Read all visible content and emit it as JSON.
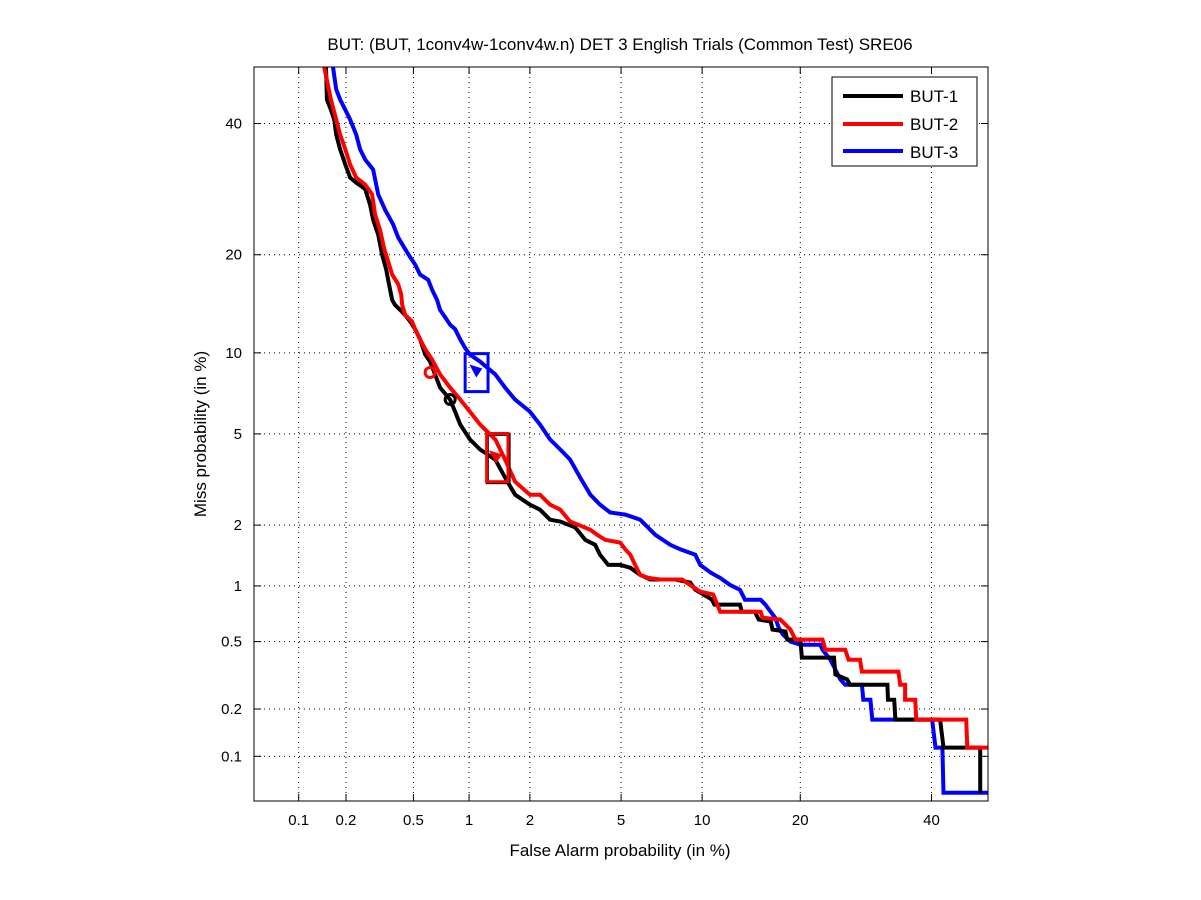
{
  "chart_data": {
    "type": "line",
    "title": "BUT: (BUT, 1conv4w-1conv4w.n) DET 3 English Trials (Common Test) SRE06",
    "xlabel": "False Alarm probability (in %)",
    "ylabel": "Miss probability (in %)",
    "xscale": "normal-deviate",
    "yscale": "normal-deviate",
    "xlim": [
      0.05,
      50
    ],
    "ylim": [
      0.05,
      50
    ],
    "grid": true,
    "legend_position": "top-right",
    "x_ticks": [
      0.1,
      0.2,
      0.5,
      1,
      2,
      5,
      10,
      20,
      40
    ],
    "x_tick_labels": [
      "0.1",
      "0.2",
      "0.5",
      "1",
      "2",
      "5",
      "10",
      "20",
      "40"
    ],
    "y_ticks": [
      0.1,
      0.2,
      0.5,
      1,
      2,
      5,
      10,
      20,
      40
    ],
    "y_tick_labels": [
      "0.1",
      "0.2",
      "0.5",
      "1",
      "2",
      "5",
      "10",
      "20",
      "40"
    ],
    "series": [
      {
        "name": "BUT-1",
        "color": "#000000",
        "points": [
          [
            0.15,
            50
          ],
          [
            0.152,
            44.2
          ],
          [
            0.161,
            42.4
          ],
          [
            0.169,
            40.7
          ],
          [
            0.174,
            38.1
          ],
          [
            0.184,
            35.6
          ],
          [
            0.198,
            33.1
          ],
          [
            0.212,
            31.0
          ],
          [
            0.231,
            30.2
          ],
          [
            0.244,
            29.8
          ],
          [
            0.262,
            29.2
          ],
          [
            0.28,
            26.9
          ],
          [
            0.292,
            24.7
          ],
          [
            0.313,
            22.6
          ],
          [
            0.33,
            20.0
          ],
          [
            0.349,
            18.2
          ],
          [
            0.358,
            17.0
          ],
          [
            0.378,
            14.8
          ],
          [
            0.393,
            14.3
          ],
          [
            0.421,
            13.8
          ],
          [
            0.449,
            13.3
          ],
          [
            0.479,
            12.7
          ],
          [
            0.511,
            12.0
          ],
          [
            0.545,
            11.1
          ],
          [
            0.582,
            9.87
          ],
          [
            0.619,
            9.33
          ],
          [
            0.702,
            7.53
          ],
          [
            0.795,
            6.8
          ],
          [
            0.845,
            6.12
          ],
          [
            0.899,
            5.45
          ],
          [
            1.01,
            4.75
          ],
          [
            1.14,
            4.32
          ],
          [
            1.36,
            3.92
          ],
          [
            1.52,
            3.28
          ],
          [
            1.7,
            2.76
          ],
          [
            2.0,
            2.49
          ],
          [
            2.23,
            2.36
          ],
          [
            2.48,
            2.12
          ],
          [
            2.76,
            2.08
          ],
          [
            3.21,
            1.95
          ],
          [
            3.55,
            1.7
          ],
          [
            3.91,
            1.61
          ],
          [
            4.1,
            1.44
          ],
          [
            4.43,
            1.28
          ],
          [
            4.96,
            1.28
          ],
          [
            5.44,
            1.24
          ],
          [
            5.95,
            1.14
          ],
          [
            6.5,
            1.08
          ],
          [
            8.05,
            1.08
          ],
          [
            9.09,
            1.04
          ],
          [
            9.47,
            0.956
          ],
          [
            9.85,
            0.924
          ],
          [
            10.8,
            0.847
          ],
          [
            11.0,
            0.797
          ],
          [
            13.3,
            0.797
          ],
          [
            13.5,
            0.73
          ],
          [
            14.8,
            0.73
          ],
          [
            15.2,
            0.662
          ],
          [
            16.5,
            0.646
          ],
          [
            16.7,
            0.583
          ],
          [
            18.2,
            0.569
          ],
          [
            18.4,
            0.513
          ],
          [
            20.0,
            0.513
          ],
          [
            20.2,
            0.405
          ],
          [
            24.5,
            0.405
          ],
          [
            24.7,
            0.323
          ],
          [
            26.4,
            0.302
          ],
          [
            26.8,
            0.281
          ],
          [
            32.6,
            0.281
          ],
          [
            32.7,
            0.228
          ],
          [
            33.7,
            0.228
          ],
          [
            33.9,
            0.172
          ],
          [
            41.5,
            0.172
          ],
          [
            42.1,
            0.114
          ],
          [
            48.6,
            0.114
          ],
          [
            48.6,
            0.057
          ]
        ],
        "min_dcf_point": [
          1.37,
          4.0
        ],
        "act_dcf_point": [
          0.795,
          6.8
        ],
        "confidence_box": {
          "fa": [
            1.24,
            1.59
          ],
          "miss": [
            3.12,
            4.98
          ]
        }
      },
      {
        "name": "BUT-2",
        "color": "#ff0000",
        "points": [
          [
            0.146,
            50
          ],
          [
            0.161,
            44.2
          ],
          [
            0.174,
            40.7
          ],
          [
            0.184,
            38.1
          ],
          [
            0.198,
            35.6
          ],
          [
            0.212,
            33.1
          ],
          [
            0.231,
            31.0
          ],
          [
            0.262,
            29.9
          ],
          [
            0.288,
            28.4
          ],
          [
            0.3,
            25.4
          ],
          [
            0.321,
            23.3
          ],
          [
            0.34,
            20.7
          ],
          [
            0.358,
            19.2
          ],
          [
            0.378,
            17.6
          ],
          [
            0.41,
            16.5
          ],
          [
            0.426,
            15.4
          ],
          [
            0.432,
            14.3
          ],
          [
            0.449,
            13.3
          ],
          [
            0.491,
            12.7
          ],
          [
            0.511,
            12.0
          ],
          [
            0.545,
            11.1
          ],
          [
            0.582,
            10.3
          ],
          [
            0.635,
            9.48
          ],
          [
            0.702,
            8.41
          ],
          [
            0.795,
            7.53
          ],
          [
            0.899,
            6.8
          ],
          [
            1.01,
            6.12
          ],
          [
            1.14,
            5.45
          ],
          [
            1.36,
            4.75
          ],
          [
            1.52,
            3.92
          ],
          [
            1.7,
            3.15
          ],
          [
            2.0,
            2.76
          ],
          [
            2.23,
            2.76
          ],
          [
            2.48,
            2.49
          ],
          [
            2.76,
            2.36
          ],
          [
            3.05,
            2.08
          ],
          [
            3.73,
            1.9
          ],
          [
            3.99,
            1.8
          ],
          [
            4.31,
            1.7
          ],
          [
            4.96,
            1.65
          ],
          [
            5.2,
            1.53
          ],
          [
            5.44,
            1.44
          ],
          [
            5.68,
            1.28
          ],
          [
            5.95,
            1.14
          ],
          [
            6.39,
            1.1
          ],
          [
            7.08,
            1.08
          ],
          [
            8.52,
            1.08
          ],
          [
            9.09,
            1.01
          ],
          [
            9.85,
            0.934
          ],
          [
            10.9,
            0.902
          ],
          [
            11.5,
            0.73
          ],
          [
            15.4,
            0.73
          ],
          [
            15.6,
            0.678
          ],
          [
            17.6,
            0.662
          ],
          [
            18.2,
            0.621
          ],
          [
            18.8,
            0.583
          ],
          [
            19.4,
            0.513
          ],
          [
            22.9,
            0.513
          ],
          [
            23.3,
            0.45
          ],
          [
            26.1,
            0.45
          ],
          [
            26.6,
            0.394
          ],
          [
            28.3,
            0.394
          ],
          [
            28.6,
            0.336
          ],
          [
            34.4,
            0.336
          ],
          [
            34.7,
            0.281
          ],
          [
            35.5,
            0.281
          ],
          [
            35.5,
            0.228
          ],
          [
            37.2,
            0.228
          ],
          [
            37.4,
            0.172
          ],
          [
            46.1,
            0.172
          ],
          [
            46.3,
            0.114
          ],
          [
            50,
            0.114
          ]
        ],
        "min_dcf_point": [
          1.37,
          4.0
        ],
        "act_dcf_point": [
          0.619,
          8.54
        ],
        "confidence_box": {
          "fa": [
            1.23,
            1.57
          ],
          "miss": [
            3.15,
            5.02
          ]
        }
      },
      {
        "name": "BUT-3",
        "color": "#0000ff",
        "points": [
          [
            0.166,
            50
          ],
          [
            0.174,
            46.0
          ],
          [
            0.184,
            44.2
          ],
          [
            0.198,
            42.4
          ],
          [
            0.212,
            40.7
          ],
          [
            0.231,
            38.1
          ],
          [
            0.244,
            35.6
          ],
          [
            0.262,
            33.9
          ],
          [
            0.292,
            32.3
          ],
          [
            0.313,
            28.4
          ],
          [
            0.344,
            26.1
          ],
          [
            0.383,
            24.0
          ],
          [
            0.41,
            22.2
          ],
          [
            0.449,
            20.7
          ],
          [
            0.479,
            19.7
          ],
          [
            0.511,
            18.8
          ],
          [
            0.545,
            17.6
          ],
          [
            0.604,
            17.0
          ],
          [
            0.635,
            15.9
          ],
          [
            0.676,
            14.8
          ],
          [
            0.702,
            13.8
          ],
          [
            0.747,
            13.1
          ],
          [
            0.795,
            12.4
          ],
          [
            0.845,
            12.0
          ],
          [
            0.899,
            11.1
          ],
          [
            0.954,
            10.4
          ],
          [
            1.01,
            9.87
          ],
          [
            1.14,
            9.33
          ],
          [
            1.36,
            8.41
          ],
          [
            1.52,
            7.53
          ],
          [
            1.7,
            6.8
          ],
          [
            2.0,
            6.12
          ],
          [
            2.23,
            5.45
          ],
          [
            2.48,
            4.75
          ],
          [
            2.76,
            4.32
          ],
          [
            3.05,
            3.92
          ],
          [
            3.38,
            3.28
          ],
          [
            3.73,
            2.76
          ],
          [
            4.1,
            2.49
          ],
          [
            4.51,
            2.29
          ],
          [
            5.2,
            2.24
          ],
          [
            5.95,
            2.12
          ],
          [
            6.79,
            1.8
          ],
          [
            7.71,
            1.61
          ],
          [
            8.38,
            1.53
          ],
          [
            9.47,
            1.44
          ],
          [
            9.85,
            1.28
          ],
          [
            10.7,
            1.17
          ],
          [
            11.5,
            1.1
          ],
          [
            12.4,
            1.01
          ],
          [
            13.3,
            0.956
          ],
          [
            13.8,
            0.847
          ],
          [
            15.4,
            0.847
          ],
          [
            15.9,
            0.797
          ],
          [
            16.5,
            0.73
          ],
          [
            17.0,
            0.678
          ],
          [
            17.4,
            0.598
          ],
          [
            17.9,
            0.547
          ],
          [
            18.8,
            0.5
          ],
          [
            20.0,
            0.48
          ],
          [
            22.6,
            0.48
          ],
          [
            22.9,
            0.45
          ],
          [
            24.0,
            0.394
          ],
          [
            24.7,
            0.345
          ],
          [
            25.4,
            0.302
          ],
          [
            26.1,
            0.281
          ],
          [
            28.6,
            0.281
          ],
          [
            28.8,
            0.228
          ],
          [
            29.9,
            0.228
          ],
          [
            30.2,
            0.172
          ],
          [
            40.1,
            0.172
          ],
          [
            40.7,
            0.114
          ],
          [
            41.9,
            0.114
          ],
          [
            42.1,
            0.057
          ],
          [
            50,
            0.057
          ]
        ],
        "min_dcf_point": [
          1.09,
          8.61
        ],
        "act_dcf_point": [
          1.09,
          8.61
        ],
        "confidence_box": {
          "fa": [
            0.954,
            1.25
          ],
          "miss": [
            7.28,
            9.94
          ]
        }
      }
    ]
  }
}
